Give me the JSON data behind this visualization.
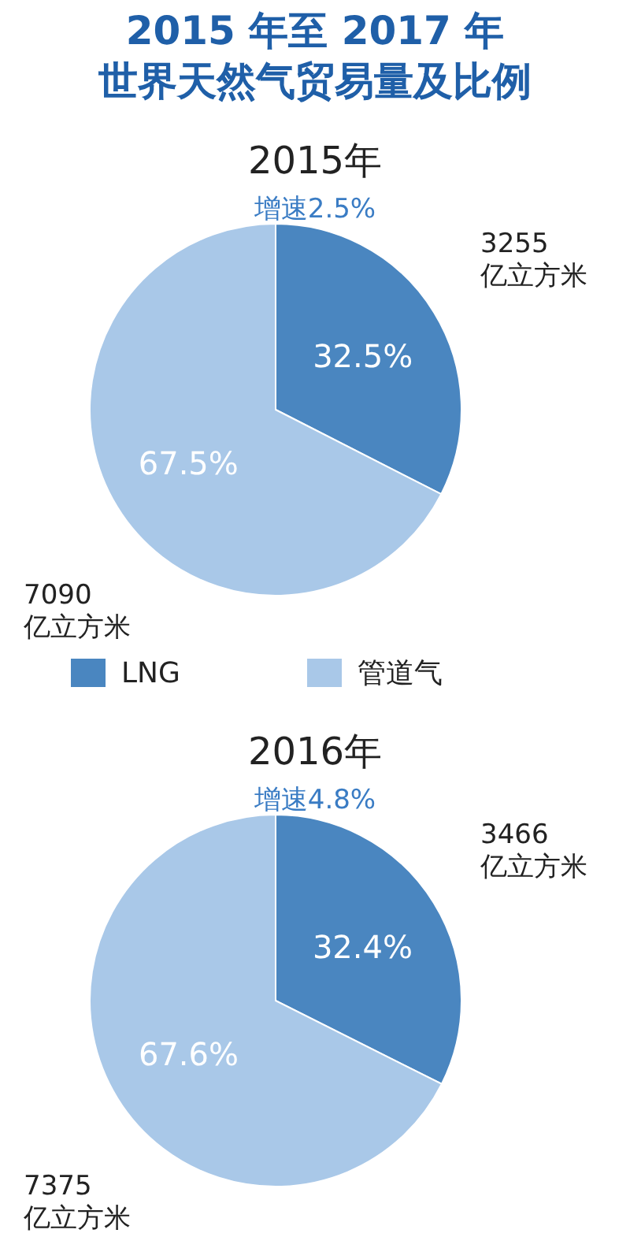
{
  "chart_data": [
    {
      "type": "pie",
      "title": "2015 年至 2017 年",
      "subtitle": "世界天然气贸易量及比例",
      "categories": [
        "LNG",
        "管道气"
      ],
      "values": [
        32.5,
        67.5
      ],
      "colors": [
        "#4a86c0",
        "#a9c8e8"
      ],
      "value_labels": [
        "32.5%",
        "67.5%"
      ],
      "legend": "bottom",
      "annotations": [
        "2015年",
        "增速2.5%",
        "3255\n亿立方米",
        "7090\n亿立方米"
      ]
    },
    {
      "type": "pie",
      "categories": [
        null,
        null
      ],
      "values": [
        32.4,
        67.6
      ],
      "colors": [
        "#4a86c0",
        "#a9c8e8"
      ],
      "value_labels": [
        "32.4%",
        "67.6%"
      ],
      "annotations": [
        "2016年",
        "增速4.8%",
        "3466\n亿立方米",
        "7375\n亿立方米"
      ]
    }
  ]
}
